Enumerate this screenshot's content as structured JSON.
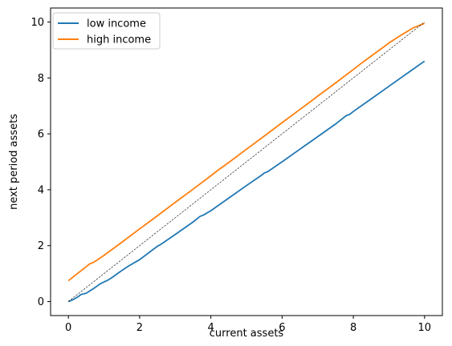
{
  "chart_data": {
    "type": "line",
    "xlabel": "current assets",
    "ylabel": "next period assets",
    "xlim": [
      -0.5,
      10.5
    ],
    "ylim": [
      -0.5,
      10.5
    ],
    "xticks": [
      0,
      2,
      4,
      6,
      8,
      10
    ],
    "yticks": [
      0,
      2,
      4,
      6,
      8,
      10
    ],
    "xtick_labels": [
      "0",
      "2",
      "4",
      "6",
      "8",
      "10"
    ],
    "ytick_labels": [
      "0",
      "2",
      "4",
      "6",
      "8",
      "10"
    ],
    "grid": false,
    "legend_position": "top-left",
    "series": [
      {
        "name": "low income",
        "color": "#1f77b4",
        "x": [
          0,
          0.1,
          0.2,
          0.3,
          0.35,
          0.5,
          0.6,
          0.7,
          0.8,
          0.9,
          1.0,
          1.1,
          1.2,
          1.3,
          1.4,
          1.5,
          1.6,
          1.7,
          2.0,
          2.5,
          2.6,
          3.0,
          3.5,
          3.7,
          3.8,
          4.0,
          4.5,
          5.0,
          5.4,
          5.5,
          5.6,
          6.0,
          6.5,
          7.0,
          7.5,
          7.8,
          7.9,
          8.0,
          8.5,
          9.0,
          9.5,
          10.0
        ],
        "y": [
          0.0,
          0.05,
          0.12,
          0.2,
          0.25,
          0.3,
          0.38,
          0.46,
          0.55,
          0.64,
          0.7,
          0.76,
          0.84,
          0.93,
          1.02,
          1.11,
          1.2,
          1.28,
          1.5,
          1.98,
          2.05,
          2.4,
          2.85,
          3.05,
          3.1,
          3.25,
          3.7,
          4.15,
          4.5,
          4.6,
          4.65,
          5.0,
          5.45,
          5.9,
          6.35,
          6.65,
          6.7,
          6.8,
          7.25,
          7.7,
          8.15,
          8.6
        ]
      },
      {
        "name": "high income",
        "color": "#ff7f0e",
        "x": [
          0,
          0.5,
          0.6,
          0.7,
          0.8,
          1.0,
          1.5,
          2.0,
          2.5,
          3.0,
          3.5,
          4.0,
          4.2,
          4.5,
          5.0,
          5.5,
          6.0,
          6.5,
          6.9,
          7.0,
          7.5,
          8.0,
          8.2,
          8.5,
          8.9,
          9.0,
          9.3,
          9.5,
          9.7,
          9.8,
          9.9,
          10.0
        ],
        "y": [
          0.75,
          1.25,
          1.35,
          1.4,
          1.48,
          1.65,
          2.12,
          2.6,
          3.07,
          3.55,
          4.02,
          4.5,
          4.7,
          4.97,
          5.45,
          5.92,
          6.4,
          6.87,
          7.25,
          7.35,
          7.82,
          8.3,
          8.5,
          8.78,
          9.15,
          9.25,
          9.5,
          9.65,
          9.8,
          9.85,
          9.9,
          9.95
        ]
      },
      {
        "name": "",
        "color": "#000000",
        "style": "dashed",
        "x": [
          0,
          10
        ],
        "y": [
          0,
          10
        ]
      }
    ]
  }
}
